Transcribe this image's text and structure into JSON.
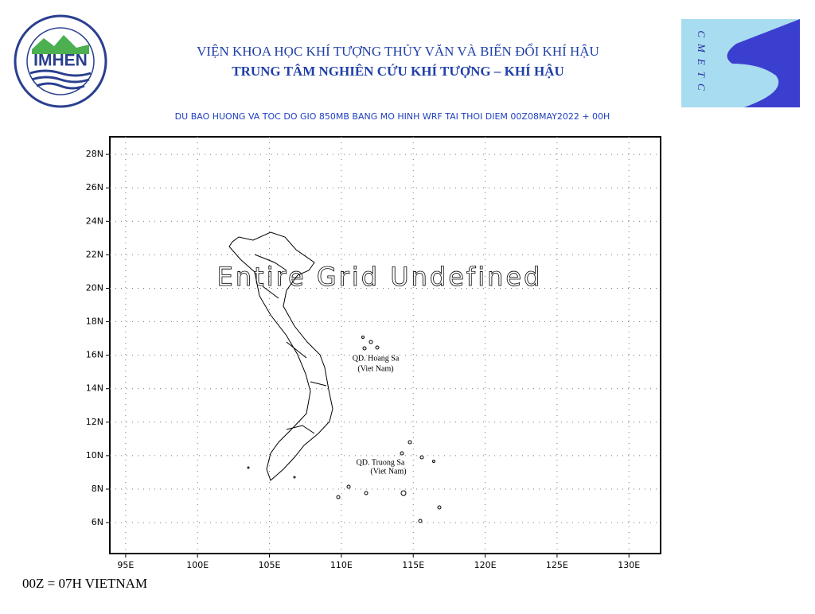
{
  "header": {
    "institute": "VIỆN KHOA HỌC KHÍ TƯỢNG THỦY VĂN VÀ BIẾN ĐỔI KHÍ HẬU",
    "center": "TRUNG TÂM NGHIÊN CỨU KHÍ TƯỢNG – KHÍ HẬU",
    "logo_left": "IMHEN",
    "logo_right": "CMETC"
  },
  "map": {
    "title": "DU BAO HUONG VA TOC DO GIO 850MB BANG MO HINH WRF TAI THOI DIEM  00Z08MAY2022 + 00H",
    "message": "Entire Grid Undefined",
    "labels": [
      {
        "name": "QD. Hoang Sa",
        "sub": "(Viet Nam)"
      },
      {
        "name": "QD. Truong Sa",
        "sub": "(Viet Nam)"
      }
    ],
    "xlim": [
      93.9,
      132.2
    ],
    "ylim": [
      4.15,
      29.05
    ],
    "xticks": [
      {
        "value": 95,
        "label": "95E"
      },
      {
        "value": 100,
        "label": "100E"
      },
      {
        "value": 105,
        "label": "105E"
      },
      {
        "value": 110,
        "label": "110E"
      },
      {
        "value": 115,
        "label": "115E"
      },
      {
        "value": 120,
        "label": "120E"
      },
      {
        "value": 125,
        "label": "125E"
      },
      {
        "value": 130,
        "label": "130E"
      }
    ],
    "yticks": [
      {
        "value": 6,
        "label": "6N"
      },
      {
        "value": 8,
        "label": "8N"
      },
      {
        "value": 10,
        "label": "10N"
      },
      {
        "value": 12,
        "label": "12N"
      },
      {
        "value": 14,
        "label": "14N"
      },
      {
        "value": 16,
        "label": "16N"
      },
      {
        "value": 18,
        "label": "18N"
      },
      {
        "value": 20,
        "label": "20N"
      },
      {
        "value": 22,
        "label": "22N"
      },
      {
        "value": 24,
        "label": "24N"
      },
      {
        "value": 26,
        "label": "26N"
      },
      {
        "value": 28,
        "label": "28N"
      }
    ],
    "grid": true
  },
  "footer": "00Z = 07H VIETNAM"
}
